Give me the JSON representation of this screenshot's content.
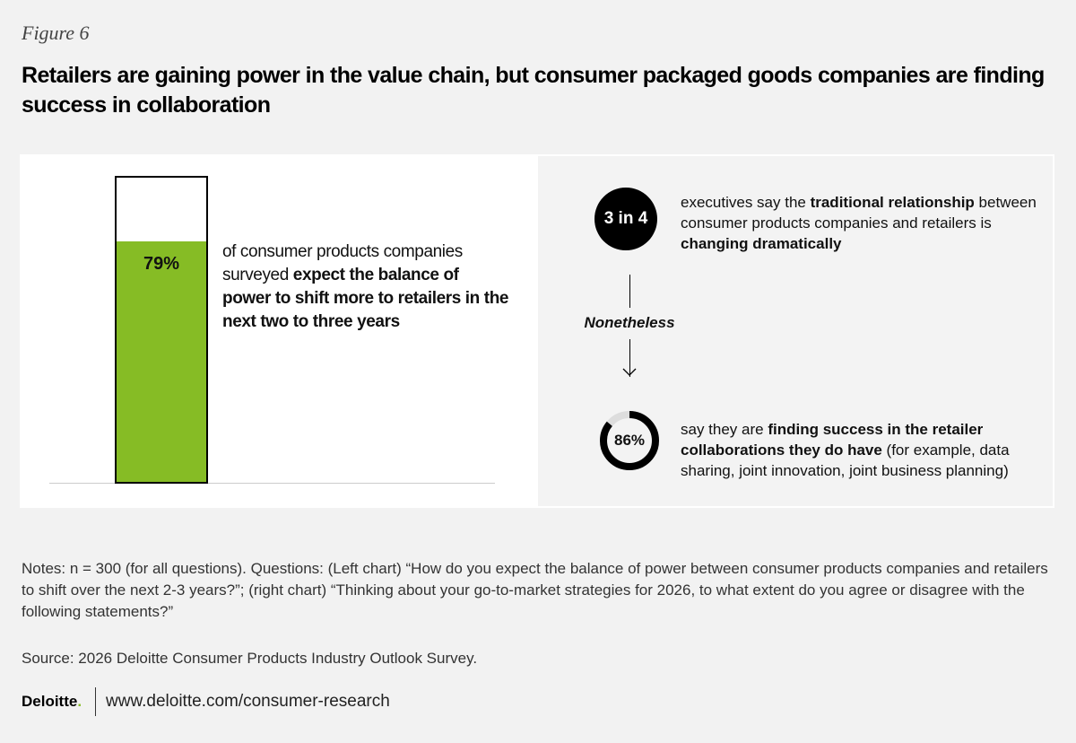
{
  "figure_label": "Figure 6",
  "title": "Retailers are gaining power in the value chain, but consumer packaged goods companies are finding success in collaboration",
  "chart_data": [
    {
      "type": "bar",
      "title": "",
      "categories": [
        "Expect power to shift to retailers"
      ],
      "values": [
        79
      ],
      "ylim": [
        0,
        100
      ],
      "data_label": "79%",
      "text_parts": [
        "of consumer products companies surveyed ",
        "expect the balance of power to shift more to retailers in the next two to three years"
      ]
    },
    {
      "type": "stat",
      "value_label": "3 in 4",
      "text_parts": [
        "executives say the ",
        "traditional relationship",
        " between consumer products companies and retailers is ",
        "changing dramatically"
      ]
    },
    {
      "type": "pie",
      "values": [
        86,
        14
      ],
      "data_label": "86%",
      "text_parts": [
        "say they are ",
        "finding success in the retailer collaborations they do have",
        " (for example, data sharing, joint innovation, joint business planning)"
      ]
    }
  ],
  "connector": "Nonetheless",
  "notes": "Notes: n = 300 (for all questions). Questions: (Left chart) “How do you expect the balance of power between consumer products companies and retailers to shift over the next 2-3 years?”; (right chart) “Thinking about your go-to-market strategies for 2026, to what extent do you agree or disagree with the following statements?”",
  "source": "Source: 2026 Deloitte Consumer Products Industry Outlook Survey.",
  "footer": {
    "logo": "Deloitte",
    "logo_dot": ".",
    "url": "www.deloitte.com/consumer-research"
  },
  "colors": {
    "accent": "#86bc25",
    "dark": "#000000",
    "track": "#dddddd"
  }
}
